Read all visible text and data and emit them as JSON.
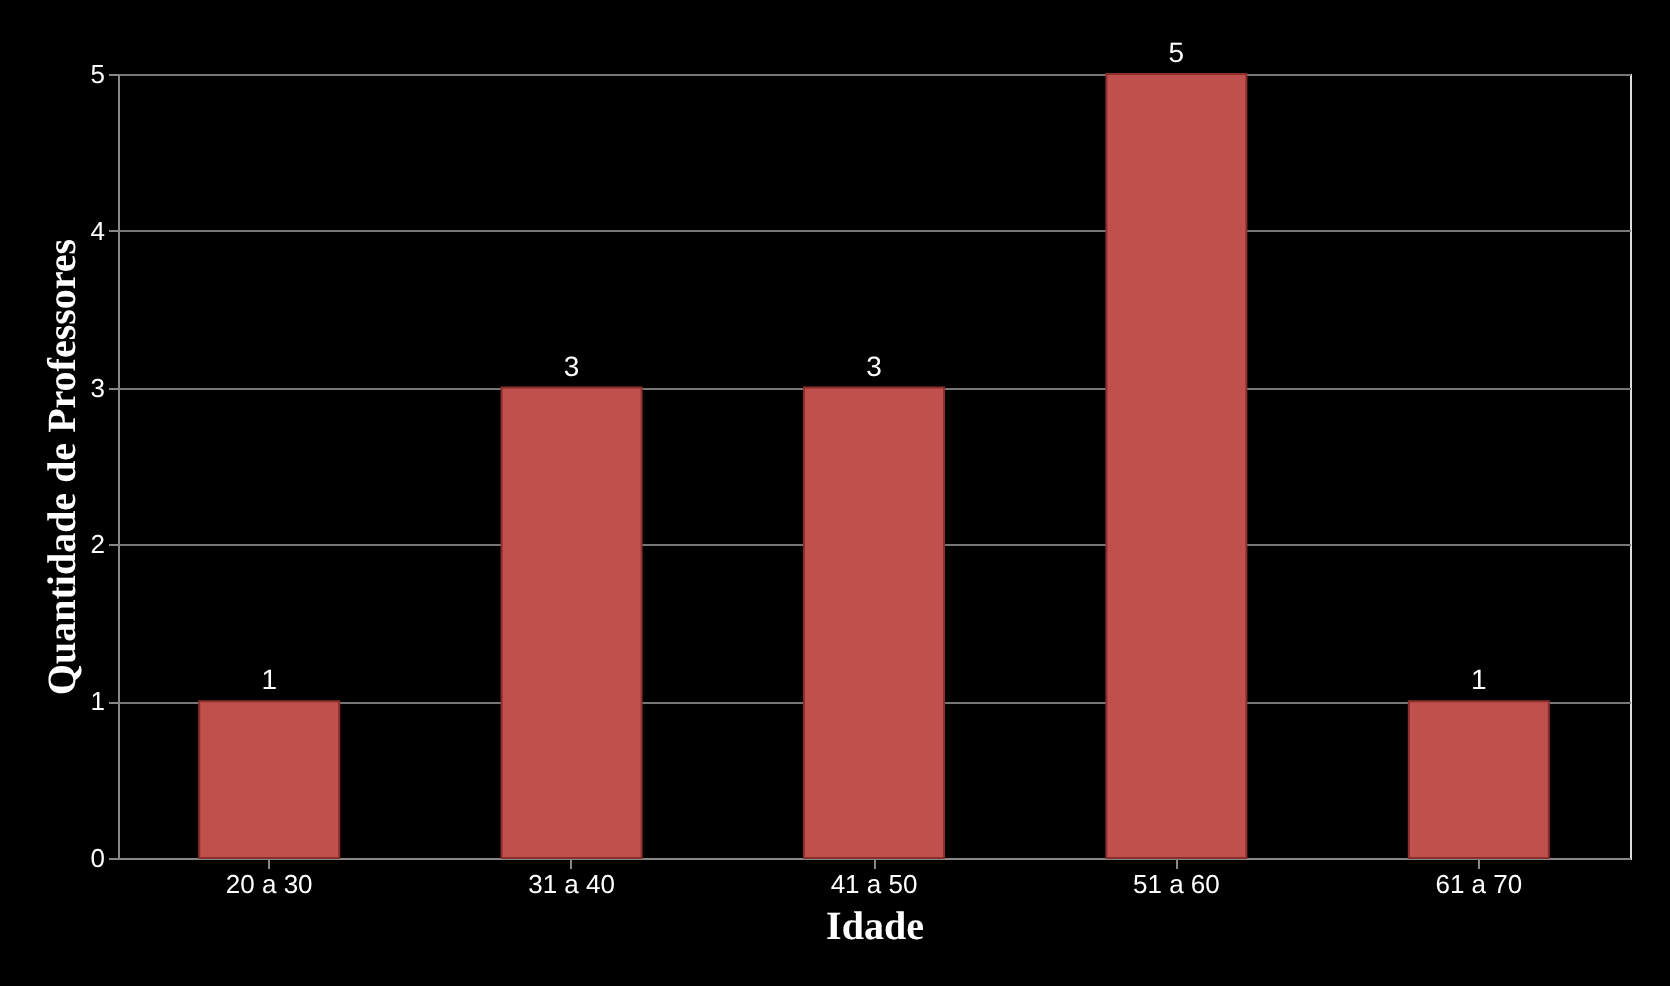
{
  "chart_data": {
    "type": "bar",
    "xlabel": "Idade",
    "ylabel": "Quantidade de Professores",
    "categories": [
      "20 a 30",
      "31 a 40",
      "41 a 50",
      "51 a 60",
      "61 a 70"
    ],
    "values": [
      1,
      3,
      3,
      5,
      1
    ],
    "color": "#c0504d",
    "ylim": [
      0,
      5
    ],
    "yticks": [
      0,
      1,
      2,
      3,
      4,
      5
    ],
    "grid": "y",
    "data_labels": true
  }
}
